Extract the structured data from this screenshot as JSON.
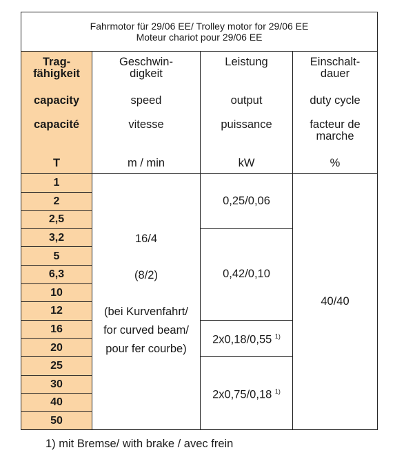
{
  "header": {
    "title": "Fahrmotor für 29/06 EE/ Trolley motor for 29/06 EE\nMoteur chariot pour 29/06 EE"
  },
  "table": {
    "header_rows": [
      [
        "Trag-\nfähigkeit",
        "Geschwin-\ndigkeit",
        "Leistung",
        "Einschalt-\ndauer"
      ],
      [
        "capacity",
        "speed",
        "output",
        "duty cycle"
      ],
      [
        "capacité",
        "vitesse",
        "puissance",
        "facteur de\nmarche"
      ],
      [
        "T",
        "m / min",
        "kW",
        "%"
      ]
    ],
    "capacities": [
      "1",
      "2",
      "2,5",
      "3,2",
      "5",
      "6,3",
      "10",
      "12",
      "16",
      "20",
      "25",
      "30",
      "40",
      "50"
    ],
    "speed": [
      "16/4",
      "(8/2)",
      "(bei Kurvenfahrt/\nfor curved beam/\npour fer courbe)"
    ],
    "outputs": [
      {
        "value": "0,25/0,06"
      },
      {
        "value": "0,42/0,10"
      },
      {
        "value": "2x0,18/0,55",
        "note": "1)"
      },
      {
        "value": "2x0,75/0,18",
        "note": "1)"
      }
    ],
    "duty_cycle": "40/40"
  },
  "footnote": "1) mit Bremse/ with brake / avec frein"
}
